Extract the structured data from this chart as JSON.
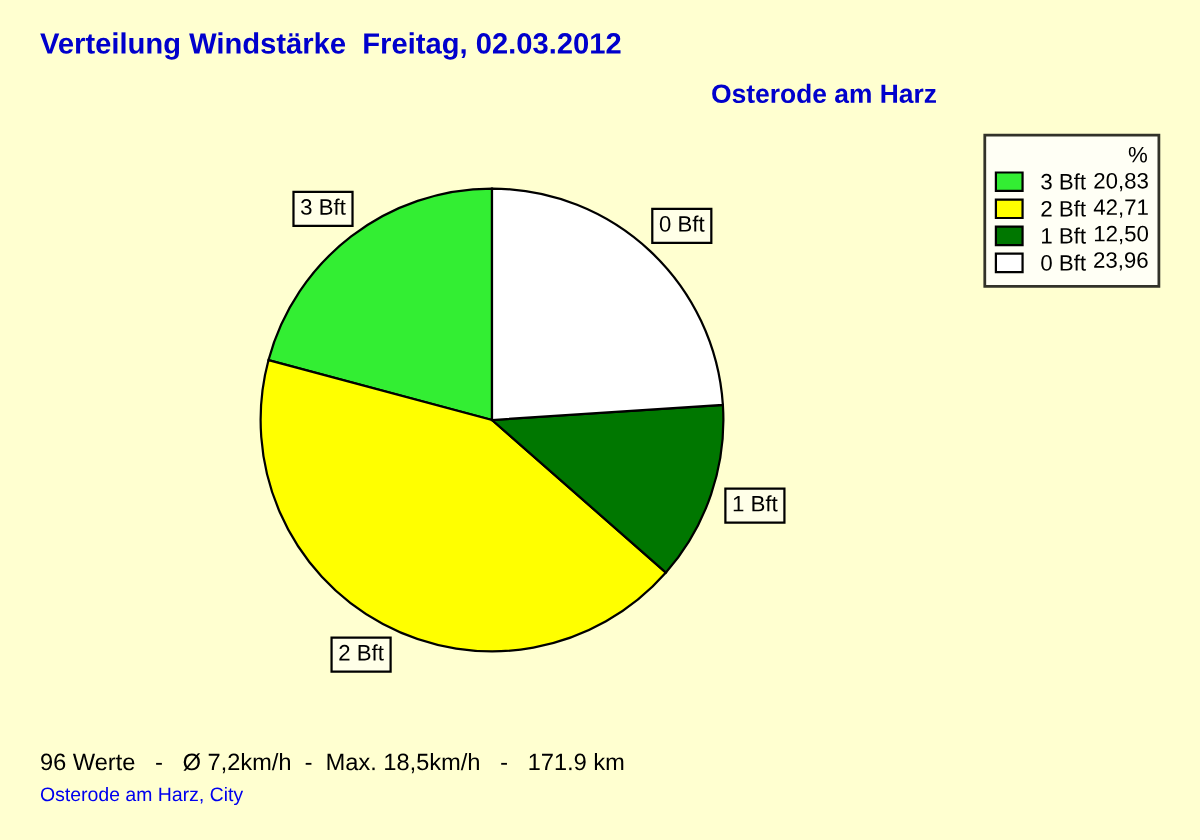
{
  "chart_data": {
    "type": "pie",
    "title": "Verteilung Windstärke  Freitag, 02.03.2012",
    "subtitle": "Osterode am Harz",
    "categories": [
      "3 Bft",
      "2 Bft",
      "1 Bft",
      "0 Bft"
    ],
    "values": [
      20.83,
      42.71,
      12.5,
      23.96
    ],
    "value_labels": [
      "20,83",
      "42,71",
      "12,50",
      "23,96"
    ],
    "colors": [
      "#33ee33",
      "#ffff00",
      "#007700",
      "#ffffff"
    ],
    "legend_title": "%",
    "legend": "top right",
    "annotations": [
      "96 Werte   -   Ø 7,2km/h  -  Max. 18,5km/h   -   171.9 km",
      "Osterode am Harz, City"
    ]
  }
}
